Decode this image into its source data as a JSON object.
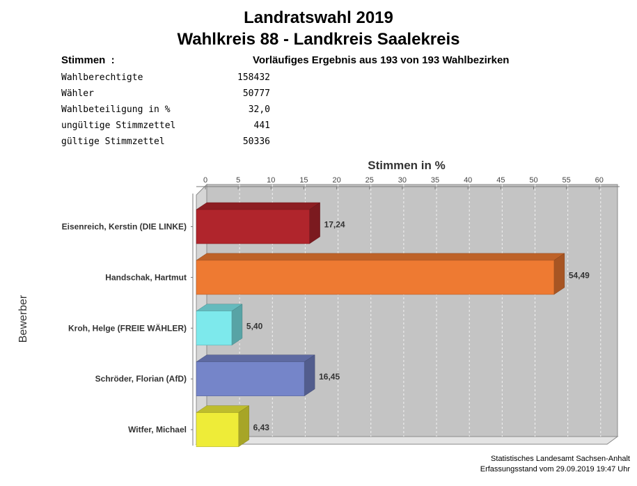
{
  "title": "Landratswahl 2019",
  "subtitle": "Wahlkreis 88 - Landkreis Saalekreis",
  "stats": {
    "label": "Stimmen  :",
    "result_note": "Vorläufiges Ergebnis aus 193 von 193 Wahlbezirken",
    "rows": [
      {
        "label": "Wahlberechtigte",
        "value": "158432"
      },
      {
        "label": "Wähler",
        "value": "50777"
      },
      {
        "label": "Wahlbeteiligung in %",
        "value": "32,0"
      },
      {
        "label": "ungültige Stimmzettel",
        "value": "441"
      },
      {
        "label": "gültige Stimmzettel",
        "value": "50336"
      }
    ]
  },
  "chart_data": {
    "type": "bar",
    "orientation": "horizontal",
    "title": "Stimmen in %",
    "xlabel": "Stimmen in %",
    "ylabel": "Bewerber",
    "xlim": [
      0,
      60
    ],
    "ticks": [
      0,
      5,
      10,
      15,
      20,
      25,
      30,
      35,
      40,
      45,
      50,
      55,
      60
    ],
    "grid": true,
    "categories": [
      "Eisenreich, Kerstin (DIE LINKE)",
      "Handschak, Hartmut",
      "Kroh, Helge (FREIE WÄHLER)",
      "Schröder, Florian (AfD)",
      "Witfer, Michael"
    ],
    "values": [
      17.24,
      54.49,
      5.4,
      16.45,
      6.43
    ],
    "value_labels": [
      "17,24",
      "54,49",
      "5,40",
      "16,45",
      "6,43"
    ],
    "colors": [
      "#b0252c",
      "#ee7a32",
      "#7de9ec",
      "#7585c9",
      "#eeec38"
    ]
  },
  "footer": {
    "source": "Statistisches Landesamt Sachsen-Anhalt",
    "timestamp": "Erfassungsstand vom 29.09.2019 19:47 Uhr"
  }
}
